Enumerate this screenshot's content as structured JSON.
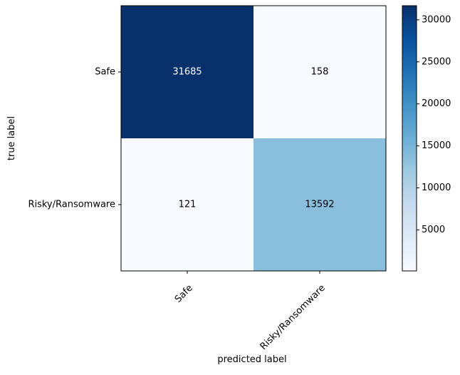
{
  "chart_data": {
    "type": "heatmap",
    "title": "",
    "xlabel": "predicted label",
    "ylabel": "true label",
    "x_categories": [
      "Safe",
      "Risky/Ransomware"
    ],
    "y_categories": [
      "Safe",
      "Risky/Ransomware"
    ],
    "values": [
      [
        31685,
        158
      ],
      [
        121,
        13592
      ]
    ],
    "colormap": "Blues",
    "color_range": [
      121,
      31685
    ],
    "colorbar_ticks": [
      5000,
      10000,
      15000,
      20000,
      25000,
      30000
    ],
    "colorbar_tick_labels": [
      "5000",
      "10000",
      "15000",
      "20000",
      "25000",
      "30000"
    ],
    "text_colors": {
      "dark_cell": "#ffffff",
      "light_cell": "#000000"
    },
    "grid": false
  }
}
